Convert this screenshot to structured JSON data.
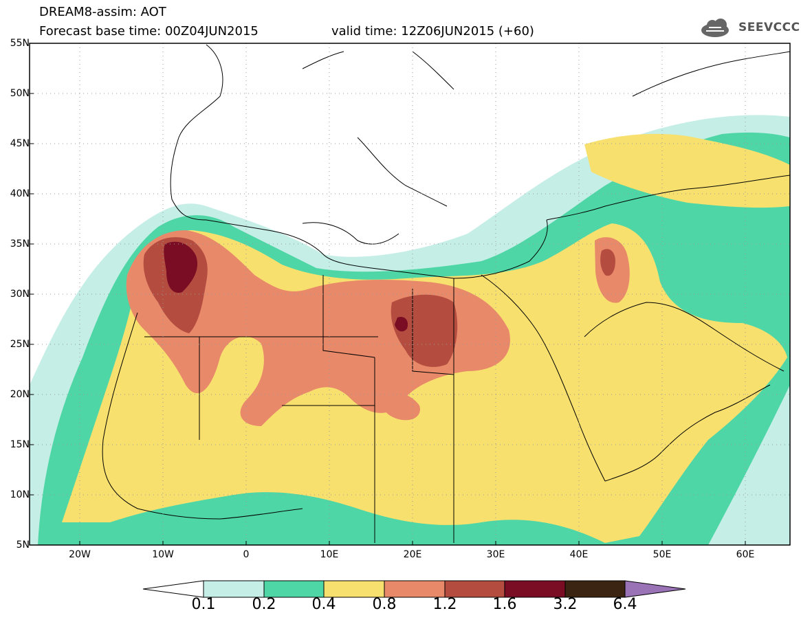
{
  "header": {
    "title_line1": "DREAM8-assim: AOT",
    "title_line2": "Forecast base time: 00Z04JUN2015",
    "valid_time": "valid time: 12Z06JUN2015 (+60)",
    "logo_text": "SEEVCCC",
    "logo_icon": "cloud-icon"
  },
  "map": {
    "lat_labels": [
      "55N",
      "50N",
      "45N",
      "40N",
      "35N",
      "30N",
      "25N",
      "20N",
      "15N",
      "10N",
      "5N"
    ],
    "lon_labels": [
      "20W",
      "10W",
      "0",
      "10E",
      "20E",
      "30E",
      "40E",
      "50E",
      "60E"
    ],
    "lon_range": [
      -25,
      65
    ],
    "lat_range": [
      5,
      55
    ]
  },
  "colorbar": {
    "labels": [
      "0.1",
      "0.2",
      "0.4",
      "0.8",
      "1.2",
      "1.6",
      "3.2",
      "6.4"
    ],
    "colors": [
      "#ffffff",
      "#c4eee6",
      "#4fd6a6",
      "#f7e06e",
      "#e8896a",
      "#b44d40",
      "#7a0c23",
      "#3b2412",
      "#9a72b6"
    ]
  },
  "colors": {
    "bin_0.1_0.2": "#c4eee6",
    "bin_0.2_0.4": "#4fd6a6",
    "bin_0.4_0.8": "#f7e06e",
    "bin_0.8_1.2": "#e8896a",
    "bin_1.2_1.6": "#b44d40",
    "bin_1.6_3.2": "#7a0c23",
    "bin_3.2_6.4": "#3b2412",
    "bin_above_6.4": "#9a72b6"
  }
}
